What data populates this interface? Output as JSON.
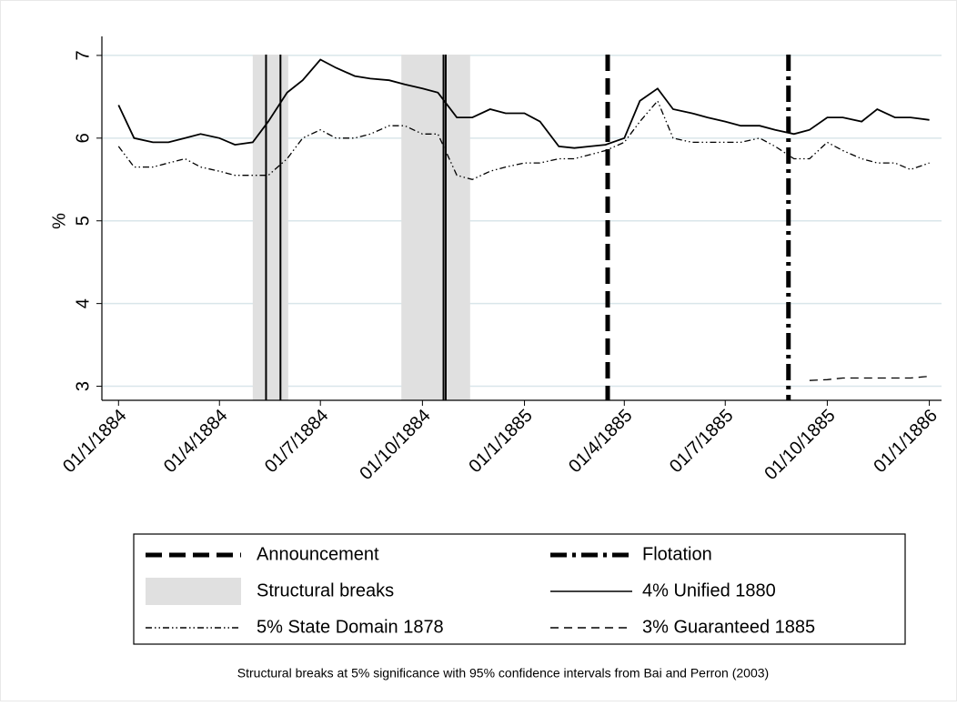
{
  "chart_data": {
    "type": "line",
    "ylabel": "%",
    "note": "Structural breaks at 5% significance with 95% confidence intervals from Bai and Perron (2003)",
    "xlim": [
      "1883-12-17",
      "1886-01-12"
    ],
    "xticks": [
      {
        "value": "1884-01-01",
        "label": "01/1/1884"
      },
      {
        "value": "1884-04-01",
        "label": "01/4/1884"
      },
      {
        "value": "1884-07-01",
        "label": "01/7/1884"
      },
      {
        "value": "1884-10-01",
        "label": "01/10/1884"
      },
      {
        "value": "1885-01-01",
        "label": "01/1/1885"
      },
      {
        "value": "1885-04-01",
        "label": "01/4/1885"
      },
      {
        "value": "1885-07-01",
        "label": "01/7/1885"
      },
      {
        "value": "1885-10-01",
        "label": "01/10/1885"
      },
      {
        "value": "1886-01-01",
        "label": "01/1/1886"
      }
    ],
    "ylim": [
      2.83,
      7.23
    ],
    "yticks": [
      3,
      4,
      5,
      6,
      7
    ],
    "grid": true,
    "announcement": {
      "name": "Announcement",
      "x": "1885-03-17",
      "color": "#000000"
    },
    "flotation": {
      "name": "Flotation",
      "x": "1885-08-27",
      "color": "#000000"
    },
    "structural_breaks": {
      "name": "Structural breaks",
      "color": "#e0e0e0",
      "intervals": [
        [
          "1884-05-01",
          "1884-06-02"
        ],
        [
          "1884-09-12",
          "1884-11-13"
        ]
      ],
      "dates": [
        "1884-05-13",
        "1884-05-26",
        "1884-10-20",
        "1884-10-22"
      ]
    },
    "x": [
      "1884-01-01",
      "1884-01-15",
      "1884-02-01",
      "1884-02-15",
      "1884-03-01",
      "1884-03-15",
      "1884-04-01",
      "1884-04-15",
      "1884-05-01",
      "1884-05-15",
      "1884-06-01",
      "1884-06-15",
      "1884-07-01",
      "1884-07-15",
      "1884-08-01",
      "1884-08-15",
      "1884-09-01",
      "1884-09-15",
      "1884-10-01",
      "1884-10-15",
      "1884-11-01",
      "1884-11-15",
      "1884-12-01",
      "1884-12-15",
      "1885-01-01",
      "1885-01-15",
      "1885-02-01",
      "1885-02-15",
      "1885-03-01",
      "1885-03-15",
      "1885-04-01",
      "1885-04-15",
      "1885-05-01",
      "1885-05-15",
      "1885-06-01",
      "1885-06-15",
      "1885-07-01",
      "1885-07-15",
      "1885-08-01",
      "1885-08-15",
      "1885-09-01",
      "1885-09-15",
      "1885-10-01",
      "1885-10-15",
      "1885-11-01",
      "1885-11-15",
      "1885-12-01",
      "1885-12-15",
      "1886-01-01"
    ],
    "series": [
      {
        "name": "4% Unified 1880",
        "color": "#000000",
        "dash": "solid",
        "values": [
          6.4,
          6.0,
          5.95,
          5.95,
          6.0,
          6.05,
          6.0,
          5.92,
          5.95,
          6.2,
          6.55,
          6.7,
          6.95,
          6.85,
          6.75,
          6.72,
          6.7,
          6.65,
          6.6,
          6.55,
          6.25,
          6.25,
          6.35,
          6.3,
          6.3,
          6.2,
          5.9,
          5.88,
          5.9,
          5.92,
          6.0,
          6.45,
          6.6,
          6.35,
          6.3,
          6.25,
          6.2,
          6.15,
          6.15,
          6.1,
          6.05,
          6.1,
          6.25,
          6.25,
          6.2,
          6.35,
          6.25,
          6.25,
          6.22
        ]
      },
      {
        "name": "5% State Domain 1878",
        "color": "#000000",
        "dash": "dash-dot-dot",
        "values": [
          5.9,
          5.65,
          5.65,
          5.7,
          5.75,
          5.65,
          5.6,
          5.55,
          5.55,
          5.55,
          5.75,
          6.0,
          6.1,
          6.0,
          6.0,
          6.05,
          6.15,
          6.15,
          6.05,
          6.05,
          5.55,
          5.5,
          5.6,
          5.65,
          5.7,
          5.7,
          5.75,
          5.75,
          5.8,
          5.85,
          5.95,
          6.2,
          6.45,
          6.0,
          5.95,
          5.95,
          5.95,
          5.95,
          6.0,
          5.9,
          5.75,
          5.75,
          5.95,
          5.85,
          5.75,
          5.7,
          5.7,
          5.62,
          5.7
        ]
      },
      {
        "name": "3% Guaranteed 1885",
        "color": "#000000",
        "dash": "dash",
        "values": [
          null,
          null,
          null,
          null,
          null,
          null,
          null,
          null,
          null,
          null,
          null,
          null,
          null,
          null,
          null,
          null,
          null,
          null,
          null,
          null,
          null,
          null,
          null,
          null,
          null,
          null,
          null,
          null,
          null,
          null,
          null,
          null,
          null,
          null,
          null,
          null,
          null,
          null,
          null,
          null,
          null,
          3.07,
          3.08,
          3.1,
          3.1,
          3.1,
          3.1,
          3.1,
          3.12
        ]
      }
    ]
  }
}
